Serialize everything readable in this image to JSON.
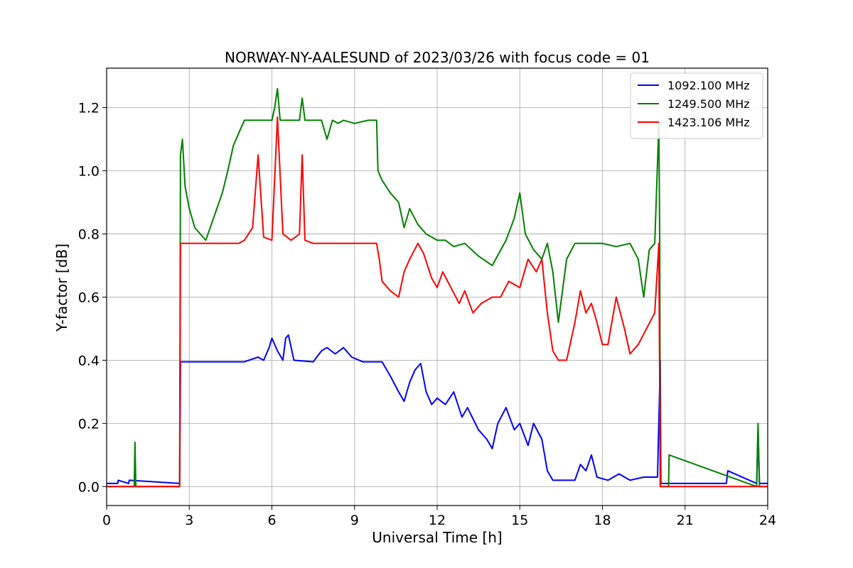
{
  "chart_data": {
    "type": "line",
    "title": "NORWAY-NY-AALESUND of 2023/03/26 with focus code = 01",
    "xlabel": "Universal Time [h]",
    "ylabel": "Y-factor [dB]",
    "xlim": [
      0,
      24
    ],
    "ylim": [
      -0.06,
      1.325
    ],
    "xticks": [
      0,
      3,
      6,
      9,
      12,
      15,
      18,
      21,
      24
    ],
    "xtick_labels": [
      "0",
      "3",
      "6",
      "9",
      "12",
      "15",
      "18",
      "21",
      "24"
    ],
    "yticks": [
      0.0,
      0.2,
      0.4,
      0.6,
      0.8,
      1.0,
      1.2
    ],
    "ytick_labels": [
      "0.0",
      "0.2",
      "0.4",
      "0.6",
      "0.8",
      "1.0",
      "1.2"
    ],
    "grid": true,
    "legend_position": "top-right",
    "series": [
      {
        "name": "1092.100 MHz",
        "color": "#0000ff",
        "x": [
          0,
          0.4,
          0.42,
          0.8,
          0.82,
          2.65,
          2.68,
          5.0,
          5.5,
          5.7,
          5.9,
          6.0,
          6.2,
          6.4,
          6.5,
          6.6,
          6.8,
          7.5,
          7.8,
          8.0,
          8.3,
          8.6,
          8.9,
          9.3,
          10.0,
          10.3,
          10.6,
          10.8,
          11.0,
          11.2,
          11.4,
          11.6,
          11.8,
          12.0,
          12.3,
          12.6,
          12.9,
          13.1,
          13.5,
          13.8,
          14.0,
          14.2,
          14.5,
          14.8,
          15.0,
          15.3,
          15.5,
          15.8,
          16.0,
          16.2,
          16.5,
          17.0,
          17.2,
          17.4,
          17.6,
          17.8,
          18.2,
          18.6,
          19.0,
          19.5,
          20.0,
          20.1,
          20.12,
          22.5,
          22.55,
          23.6,
          23.65,
          23.7,
          24.0
        ],
        "y": [
          0.01,
          0.01,
          0.02,
          0.01,
          0.02,
          0.01,
          0.395,
          0.395,
          0.41,
          0.4,
          0.44,
          0.47,
          0.43,
          0.4,
          0.47,
          0.48,
          0.4,
          0.395,
          0.43,
          0.44,
          0.42,
          0.44,
          0.41,
          0.395,
          0.395,
          0.35,
          0.3,
          0.27,
          0.33,
          0.37,
          0.39,
          0.3,
          0.26,
          0.28,
          0.26,
          0.3,
          0.22,
          0.25,
          0.18,
          0.15,
          0.12,
          0.2,
          0.25,
          0.18,
          0.2,
          0.13,
          0.2,
          0.15,
          0.05,
          0.02,
          0.02,
          0.02,
          0.07,
          0.05,
          0.1,
          0.03,
          0.02,
          0.04,
          0.02,
          0.03,
          0.03,
          0.4,
          0.01,
          0.01,
          0.05,
          0.01,
          0.18,
          0.01,
          0.01
        ]
      },
      {
        "name": "1249.500 MHz",
        "color": "#008000",
        "x": [
          0,
          1.0,
          1.03,
          1.06,
          2.65,
          2.68,
          2.75,
          2.85,
          3.0,
          3.2,
          3.4,
          3.6,
          3.8,
          4.0,
          4.2,
          4.4,
          4.6,
          4.8,
          5.0,
          5.5,
          6.0,
          6.1,
          6.2,
          6.3,
          6.7,
          7.0,
          7.1,
          7.2,
          7.8,
          8.0,
          8.2,
          8.4,
          8.6,
          9.0,
          9.5,
          9.8,
          9.85,
          10.0,
          10.3,
          10.6,
          10.8,
          11.0,
          11.3,
          11.6,
          12.0,
          12.3,
          12.6,
          13.0,
          13.5,
          14.0,
          14.5,
          14.8,
          15.0,
          15.2,
          15.5,
          15.8,
          16.0,
          16.2,
          16.4,
          16.7,
          17.0,
          17.5,
          18.0,
          18.5,
          19.0,
          19.3,
          19.5,
          19.7,
          19.9,
          20.05,
          20.08,
          20.1,
          20.4,
          20.42,
          23.6,
          23.65,
          23.7,
          24.0
        ],
        "y": [
          0.0,
          0.0,
          0.14,
          0.0,
          0.0,
          1.05,
          1.1,
          0.95,
          0.88,
          0.82,
          0.8,
          0.78,
          0.83,
          0.88,
          0.93,
          1.0,
          1.08,
          1.12,
          1.16,
          1.16,
          1.16,
          1.2,
          1.26,
          1.16,
          1.16,
          1.16,
          1.23,
          1.16,
          1.16,
          1.1,
          1.16,
          1.15,
          1.16,
          1.15,
          1.16,
          1.16,
          1.0,
          0.97,
          0.93,
          0.9,
          0.82,
          0.88,
          0.83,
          0.8,
          0.78,
          0.78,
          0.76,
          0.77,
          0.73,
          0.7,
          0.78,
          0.85,
          0.93,
          0.8,
          0.75,
          0.72,
          0.77,
          0.68,
          0.52,
          0.72,
          0.77,
          0.77,
          0.77,
          0.76,
          0.77,
          0.72,
          0.6,
          0.75,
          0.77,
          1.15,
          0.77,
          0.0,
          0.0,
          0.1,
          0.0,
          0.2,
          0.0,
          0.0
        ]
      },
      {
        "name": "1423.106 MHz",
        "color": "#ff0000",
        "x": [
          0,
          0.5,
          1.0,
          1.5,
          2.65,
          2.68,
          3.0,
          3.5,
          4.0,
          4.5,
          4.8,
          5.0,
          5.3,
          5.5,
          5.7,
          6.0,
          6.2,
          6.4,
          6.7,
          7.0,
          7.1,
          7.2,
          7.5,
          8.0,
          8.5,
          9.0,
          9.5,
          9.8,
          9.9,
          10.0,
          10.3,
          10.6,
          10.8,
          11.0,
          11.3,
          11.5,
          11.8,
          12.0,
          12.2,
          12.5,
          12.8,
          13.0,
          13.3,
          13.6,
          14.0,
          14.3,
          14.6,
          15.0,
          15.3,
          15.6,
          15.8,
          16.0,
          16.2,
          16.4,
          16.7,
          17.0,
          17.2,
          17.4,
          17.6,
          17.8,
          18.0,
          18.2,
          18.5,
          18.8,
          19.0,
          19.3,
          19.6,
          19.9,
          20.05,
          20.1,
          20.5,
          21.0,
          22.0,
          23.0,
          24.0
        ],
        "y": [
          0.0,
          0.0,
          0.0,
          0.0,
          0.0,
          0.77,
          0.77,
          0.77,
          0.77,
          0.77,
          0.77,
          0.78,
          0.82,
          1.05,
          0.79,
          0.78,
          1.17,
          0.8,
          0.78,
          0.8,
          1.05,
          0.78,
          0.77,
          0.77,
          0.77,
          0.77,
          0.77,
          0.77,
          0.72,
          0.65,
          0.62,
          0.6,
          0.68,
          0.72,
          0.77,
          0.74,
          0.66,
          0.63,
          0.68,
          0.63,
          0.58,
          0.62,
          0.55,
          0.58,
          0.6,
          0.6,
          0.65,
          0.63,
          0.72,
          0.68,
          0.72,
          0.55,
          0.43,
          0.4,
          0.4,
          0.52,
          0.62,
          0.55,
          0.58,
          0.52,
          0.45,
          0.45,
          0.6,
          0.5,
          0.42,
          0.45,
          0.5,
          0.55,
          0.77,
          0.0,
          0.0,
          0.0,
          0.0,
          0.0,
          0.0
        ]
      }
    ]
  }
}
